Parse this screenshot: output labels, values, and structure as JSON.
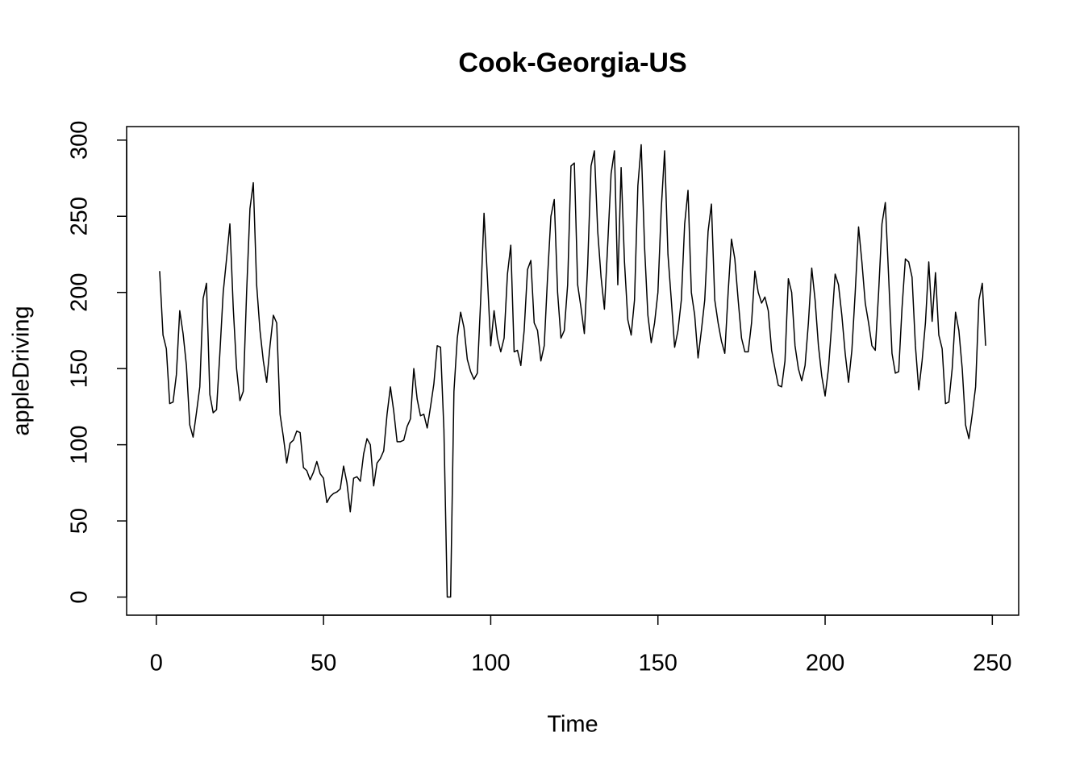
{
  "chart_data": {
    "type": "line",
    "title": "Cook-Georgia-US",
    "x_label": "Time",
    "y_label": "appleDriving",
    "x": [
      1,
      2,
      3,
      4,
      5,
      6,
      7,
      8,
      9,
      10,
      11,
      12,
      13,
      14,
      15,
      16,
      17,
      18,
      19,
      20,
      21,
      22,
      23,
      24,
      25,
      26,
      27,
      28,
      29,
      30,
      31,
      32,
      33,
      34,
      35,
      36,
      37,
      38,
      39,
      40,
      41,
      42,
      43,
      44,
      45,
      46,
      47,
      48,
      49,
      50,
      51,
      52,
      53,
      54,
      55,
      56,
      57,
      58,
      59,
      60,
      61,
      62,
      63,
      64,
      65,
      66,
      67,
      68,
      69,
      70,
      71,
      72,
      73,
      74,
      75,
      76,
      77,
      78,
      79,
      80,
      81,
      82,
      83,
      84,
      85,
      86,
      87,
      88,
      89,
      90,
      91,
      92,
      93,
      94,
      95,
      96,
      97,
      98,
      99,
      100,
      101,
      102,
      103,
      104,
      105,
      106,
      107,
      108,
      109,
      110,
      111,
      112,
      113,
      114,
      115,
      116,
      117,
      118,
      119,
      120,
      121,
      122,
      123,
      124,
      125,
      126,
      127,
      128,
      129,
      130,
      131,
      132,
      133,
      134,
      135,
      136,
      137,
      138,
      139,
      140,
      141,
      142,
      143,
      144,
      145,
      146,
      147,
      148,
      149,
      150,
      151,
      152,
      153,
      154,
      155,
      156,
      157,
      158,
      159,
      160,
      161,
      162,
      163,
      164,
      165,
      166,
      167,
      168,
      169,
      170,
      171,
      172,
      173,
      174,
      175,
      176,
      177,
      178,
      179,
      180,
      181,
      182,
      183,
      184,
      185,
      186,
      187,
      188,
      189,
      190,
      191,
      192,
      193,
      194,
      195,
      196,
      197,
      198,
      199,
      200,
      201,
      202,
      203,
      204,
      205,
      206,
      207,
      208,
      209,
      210,
      211,
      212,
      213,
      214,
      215,
      216,
      217,
      218,
      219,
      220,
      221,
      222,
      223,
      224,
      225,
      226,
      227,
      228,
      229,
      230,
      231,
      232,
      233,
      234,
      235,
      236,
      237,
      238,
      239,
      240,
      241,
      242,
      243,
      244,
      245,
      246,
      247,
      248
    ],
    "series": [
      {
        "name": "appleDriving",
        "color": "#000000",
        "values": [
          214,
          172,
          163,
          127,
          128,
          146,
          188,
          173,
          152,
          113,
          105,
          121,
          138,
          196,
          206,
          133,
          121,
          123,
          160,
          200,
          222,
          245,
          190,
          150,
          129,
          135,
          200,
          255,
          272,
          205,
          175,
          155,
          141,
          165,
          185,
          180,
          120,
          105,
          88,
          101,
          103,
          109,
          108,
          85,
          83,
          77,
          82,
          89,
          81,
          78,
          62,
          66,
          68,
          69,
          71,
          86,
          75,
          56,
          78,
          79,
          76,
          94,
          104,
          100,
          73,
          88,
          91,
          96,
          120,
          138,
          122,
          102,
          102,
          103,
          112,
          117,
          150,
          130,
          119,
          120,
          111,
          125,
          140,
          165,
          164,
          110,
          0,
          0,
          135,
          170,
          187,
          177,
          156,
          148,
          143,
          147,
          195,
          252,
          210,
          165,
          188,
          170,
          161,
          170,
          212,
          231,
          161,
          162,
          152,
          175,
          215,
          221,
          180,
          175,
          155,
          165,
          210,
          250,
          261,
          200,
          170,
          175,
          205,
          283,
          285,
          205,
          190,
          173,
          218,
          283,
          293,
          240,
          210,
          189,
          232,
          278,
          293,
          205,
          282,
          220,
          182,
          172,
          195,
          270,
          297,
          230,
          185,
          167,
          180,
          200,
          255,
          293,
          225,
          195,
          164,
          175,
          195,
          245,
          267,
          200,
          185,
          157,
          175,
          195,
          240,
          258,
          195,
          180,
          168,
          160,
          200,
          235,
          222,
          195,
          170,
          161,
          161,
          180,
          214,
          200,
          193,
          197,
          188,
          162,
          150,
          139,
          138,
          155,
          209,
          200,
          165,
          150,
          142,
          152,
          180,
          216,
          195,
          165,
          145,
          132,
          150,
          180,
          212,
          205,
          185,
          160,
          141,
          162,
          200,
          243,
          220,
          193,
          180,
          165,
          162,
          200,
          245,
          259,
          210,
          160,
          147,
          148,
          190,
          222,
          220,
          210,
          165,
          136,
          155,
          180,
          220,
          181,
          213,
          172,
          163,
          127,
          128,
          150,
          187,
          175,
          150,
          113,
          104,
          120,
          138,
          195,
          206,
          165
        ]
      }
    ],
    "xlim": [
      -8.88,
      257.88
    ],
    "ylim": [
      -11.88,
      308.88
    ],
    "xticks": [
      0,
      50,
      100,
      150,
      200,
      250
    ],
    "yticks": [
      0,
      50,
      100,
      150,
      200,
      250,
      300
    ]
  }
}
